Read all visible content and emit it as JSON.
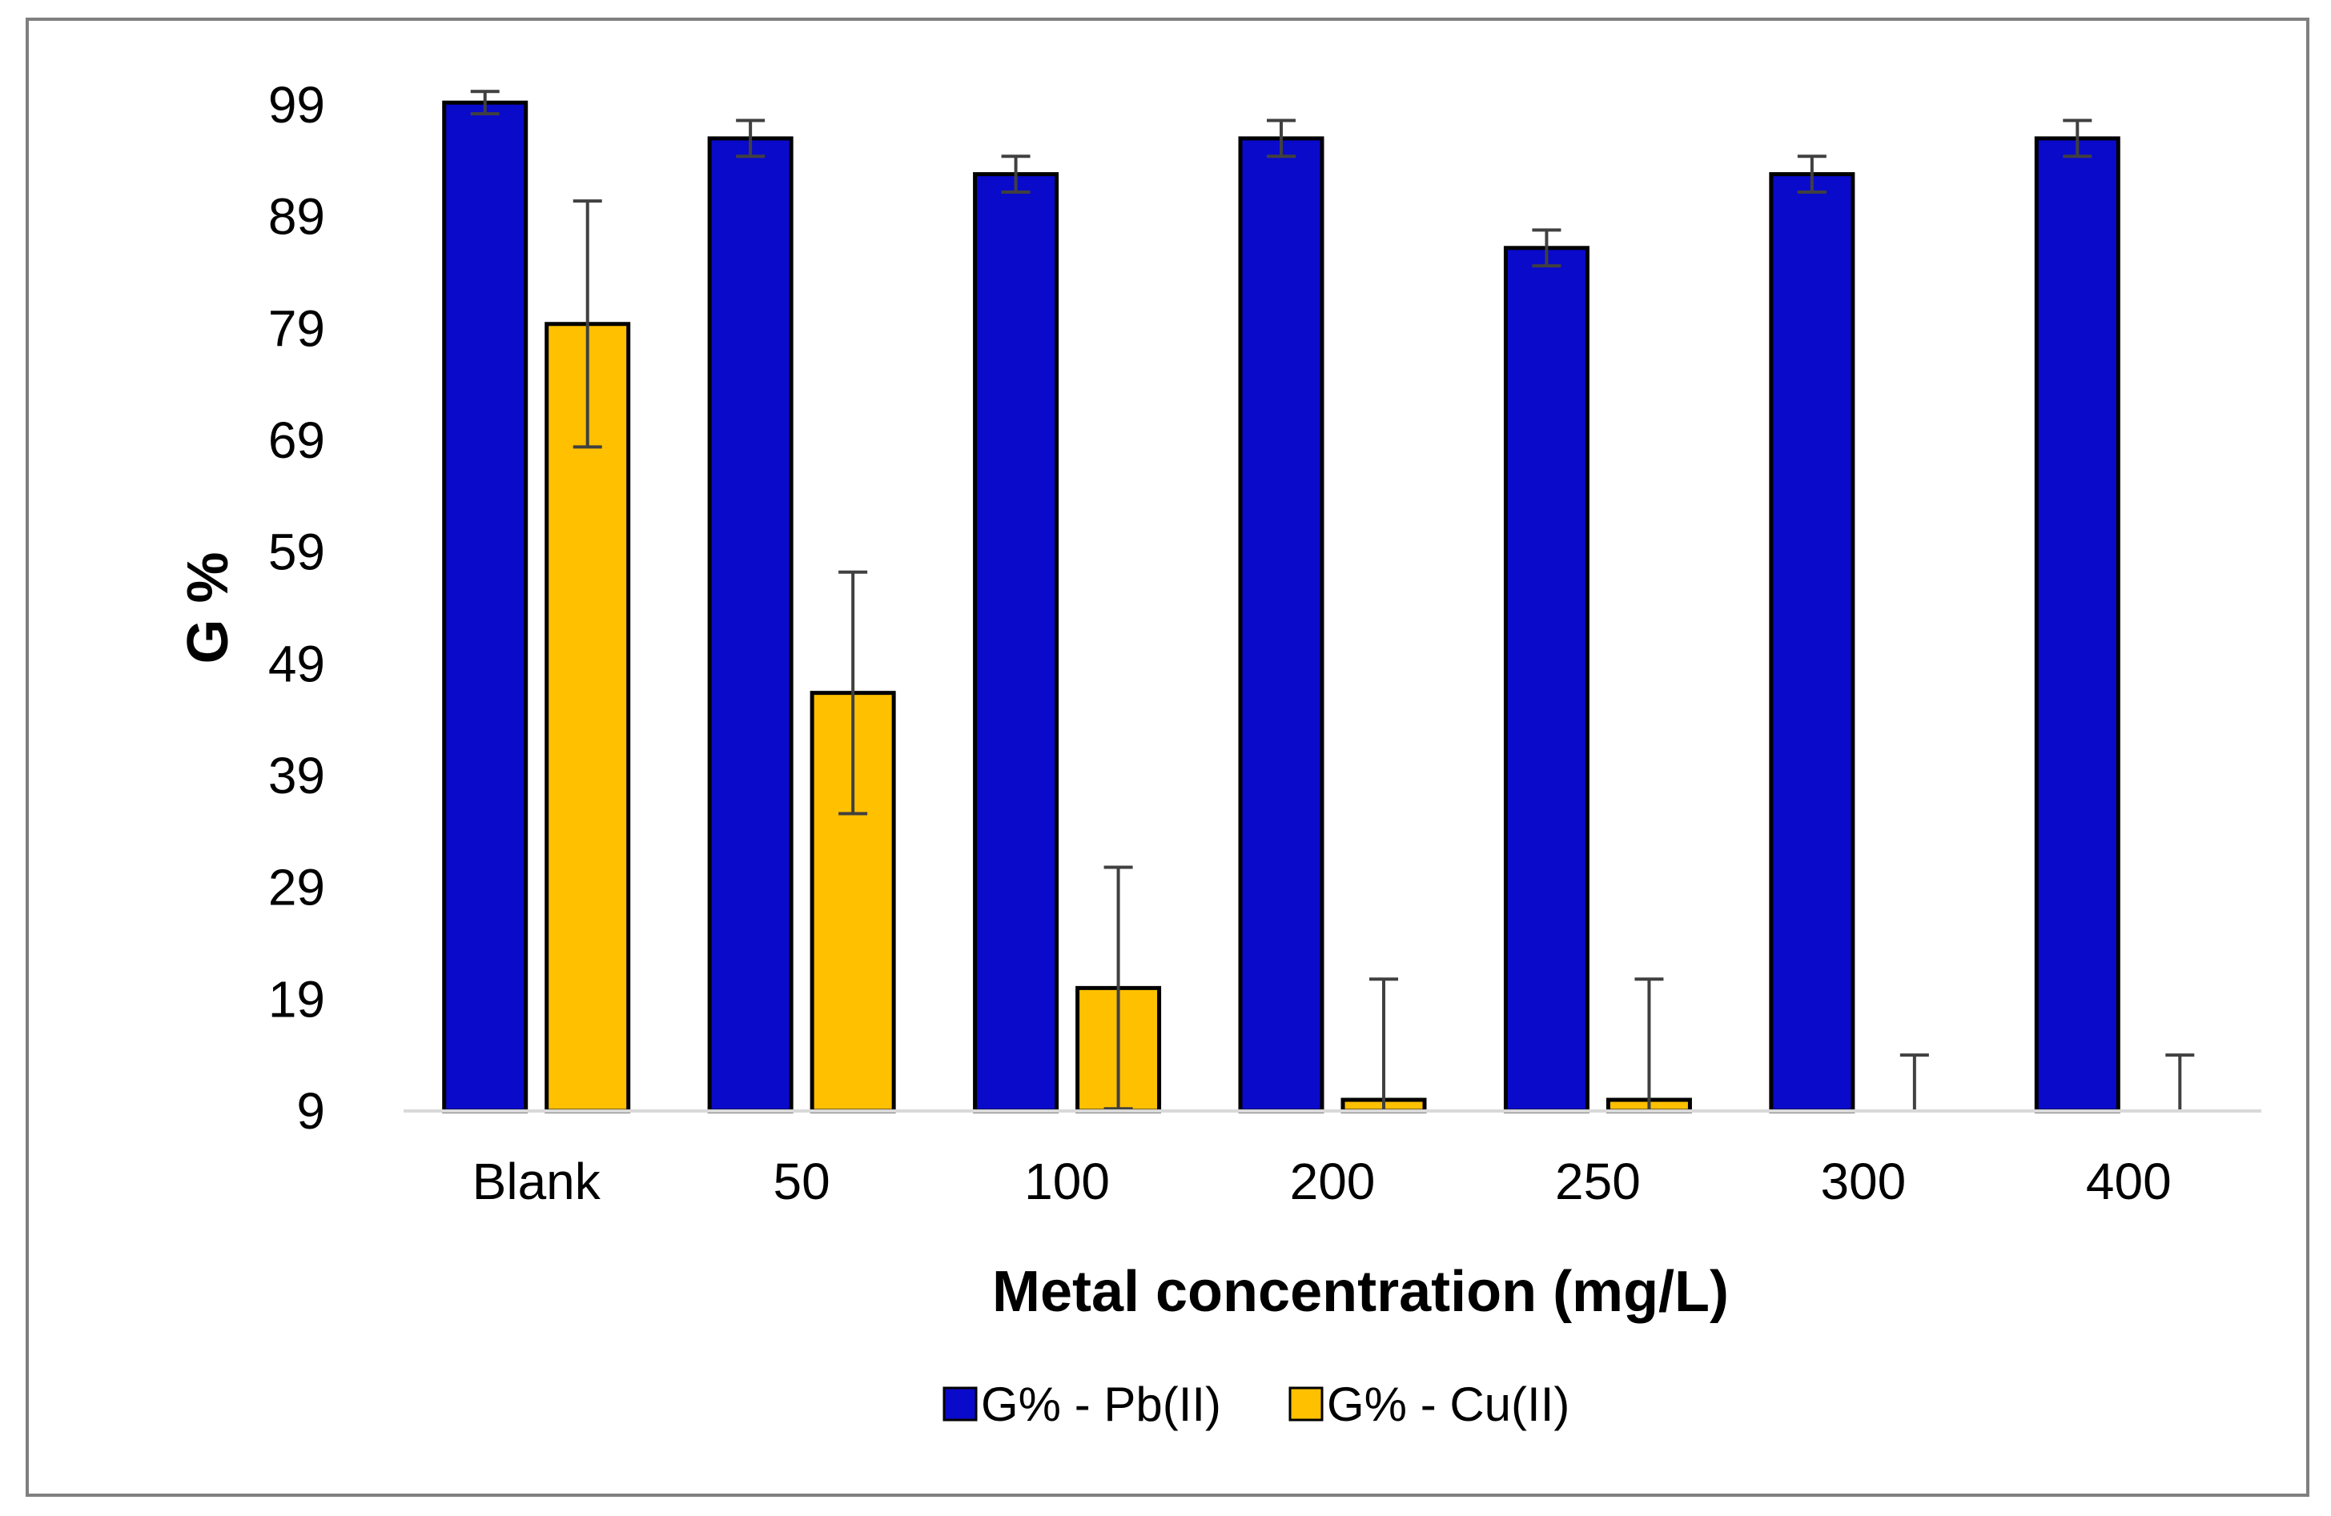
{
  "chart_data": {
    "type": "bar",
    "title": "",
    "xlabel": "Metal concentration (mg/L)",
    "ylabel": "G %",
    "ylim": [
      9,
      99
    ],
    "yticks": [
      9,
      19,
      29,
      39,
      49,
      59,
      69,
      79,
      89,
      99
    ],
    "ytick_labels": [
      "9",
      "19",
      "29",
      "39",
      "49",
      "59",
      "69",
      "79",
      "89",
      "99"
    ],
    "categories": [
      "Blank",
      "50",
      "100",
      "200",
      "250",
      "300",
      "400"
    ],
    "grid": false,
    "legend_position": "bottom-center",
    "series": [
      {
        "name": "G% - Pb(II)",
        "color": "#0a0acb",
        "values": [
          99.2,
          96.0,
          92.8,
          96.0,
          86.2,
          92.8,
          96.0
        ],
        "errors": [
          1.0,
          1.6,
          1.6,
          1.6,
          1.6,
          1.6,
          1.6
        ]
      },
      {
        "name": "G% - Cu(II)",
        "color": "#ffc000",
        "values": [
          79.4,
          46.4,
          20.0,
          10.0,
          10.0,
          9.0,
          9.0
        ],
        "errors": [
          11.0,
          10.8,
          10.8,
          10.8,
          10.8,
          5.0,
          5.0
        ]
      }
    ]
  }
}
